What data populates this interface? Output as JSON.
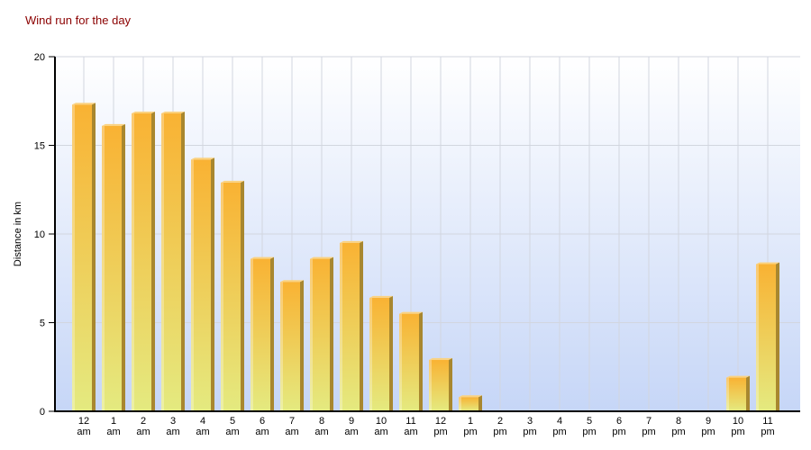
{
  "chart_data": {
    "type": "bar",
    "title": "Wind run for the day",
    "xlabel": "",
    "ylabel": "Distance in km",
    "ylim": [
      0,
      20
    ],
    "yticks": [
      0,
      5,
      10,
      15,
      20
    ],
    "grid": true,
    "categories": [
      "12 am",
      "1 am",
      "2 am",
      "3 am",
      "4 am",
      "5 am",
      "6 am",
      "7 am",
      "8 am",
      "9 am",
      "10 am",
      "11 am",
      "12 pm",
      "1 pm",
      "2 pm",
      "3 pm",
      "4 pm",
      "5 pm",
      "6 pm",
      "7 pm",
      "8 pm",
      "9 pm",
      "10 pm",
      "11 pm"
    ],
    "values": [
      17.3,
      16.1,
      16.8,
      16.8,
      14.2,
      12.9,
      8.6,
      7.3,
      8.6,
      9.5,
      6.4,
      5.5,
      2.9,
      0.8,
      0,
      0,
      0,
      0,
      0,
      0,
      0,
      0,
      1.9,
      8.3
    ],
    "colors": {
      "bar_top": "#f9b233",
      "bar_bottom": "#e4ea80",
      "background_top": "#ffffff",
      "background_bottom": "#c6d6f7",
      "title": "#8b0000"
    }
  }
}
